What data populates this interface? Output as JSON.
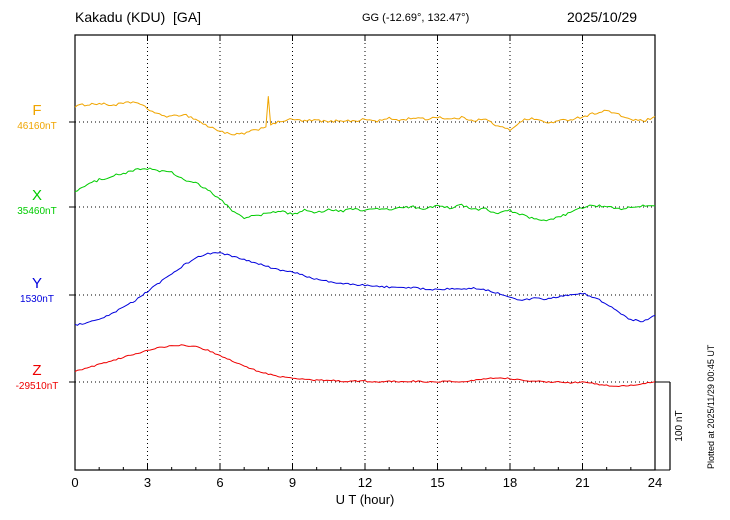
{
  "header": {
    "station": "Kakadu (KDU)  [GA]",
    "coords": "GG (-12.69°, 132.47°)",
    "date": "2025/10/29"
  },
  "plotted_at": "Plotted at 2025/11/29 00:45 UT",
  "scale_bar": {
    "label": "100 nT",
    "nT": 100
  },
  "chart_data": {
    "type": "line",
    "title": "Kakadu (KDU) [GA]",
    "xlabel": "U T (hour)",
    "x_range": [
      0,
      24
    ],
    "x_ticks": [
      0,
      3,
      6,
      9,
      12,
      15,
      18,
      21,
      24
    ],
    "grid": "dotted",
    "y_unit": "nT",
    "scale_bar_nT": 100,
    "points_format": "[UT_hour, offset_nT_from_baseline]",
    "series": [
      {
        "name": "F",
        "baseline_label": "46160nT",
        "baseline_nT": 46160,
        "color": "#f0a500",
        "noise": 1.4,
        "points": [
          [
            0,
            18
          ],
          [
            0.5,
            20
          ],
          [
            1,
            21
          ],
          [
            1.5,
            19
          ],
          [
            2,
            21
          ],
          [
            2.5,
            23
          ],
          [
            3,
            15
          ],
          [
            3.5,
            8
          ],
          [
            4,
            6
          ],
          [
            4.5,
            9
          ],
          [
            5,
            3
          ],
          [
            5.5,
            -5
          ],
          [
            6,
            -10
          ],
          [
            6.5,
            -15
          ],
          [
            7,
            -13
          ],
          [
            7.5,
            -9
          ],
          [
            7.9,
            -5
          ],
          [
            8,
            30
          ],
          [
            8.1,
            -4
          ],
          [
            8.5,
            1
          ],
          [
            9,
            3
          ],
          [
            9.5,
            1
          ],
          [
            10,
            2
          ],
          [
            10.5,
            0
          ],
          [
            11,
            2
          ],
          [
            11.5,
            1
          ],
          [
            12,
            3
          ],
          [
            12.5,
            1
          ],
          [
            13,
            4
          ],
          [
            13.5,
            2
          ],
          [
            14,
            5
          ],
          [
            14.5,
            3
          ],
          [
            15,
            6
          ],
          [
            15.5,
            3
          ],
          [
            16,
            5
          ],
          [
            16.5,
            2
          ],
          [
            17,
            3
          ],
          [
            17.5,
            -5
          ],
          [
            18,
            -9
          ],
          [
            18.5,
            2
          ],
          [
            19,
            4
          ],
          [
            19.5,
            -1
          ],
          [
            20,
            1
          ],
          [
            20.5,
            3
          ],
          [
            21,
            6
          ],
          [
            21.5,
            10
          ],
          [
            22,
            13
          ],
          [
            22.5,
            8
          ],
          [
            23,
            3
          ],
          [
            23.5,
            1
          ],
          [
            24,
            5
          ]
        ]
      },
      {
        "name": "X",
        "baseline_label": "35460nT",
        "baseline_nT": 35460,
        "color": "#00cc00",
        "noise": 1.4,
        "points": [
          [
            0,
            18
          ],
          [
            0.5,
            25
          ],
          [
            1,
            31
          ],
          [
            1.5,
            35
          ],
          [
            2,
            38
          ],
          [
            2.5,
            42
          ],
          [
            3,
            44
          ],
          [
            3.5,
            41
          ],
          [
            4,
            39
          ],
          [
            4.5,
            31
          ],
          [
            5,
            27
          ],
          [
            5.5,
            19
          ],
          [
            6,
            9
          ],
          [
            6.5,
            -4
          ],
          [
            7,
            -12
          ],
          [
            7.5,
            -10
          ],
          [
            8,
            -7
          ],
          [
            8.5,
            -5
          ],
          [
            9,
            -8
          ],
          [
            9.5,
            -4
          ],
          [
            10,
            -6
          ],
          [
            10.5,
            -3
          ],
          [
            11,
            -5
          ],
          [
            11.5,
            -2
          ],
          [
            12,
            -4
          ],
          [
            12.5,
            -2
          ],
          [
            13,
            -3
          ],
          [
            13.5,
            -1
          ],
          [
            14,
            0
          ],
          [
            14.5,
            -2
          ],
          [
            15,
            1
          ],
          [
            15.5,
            -1
          ],
          [
            16,
            2
          ],
          [
            16.5,
            -3
          ],
          [
            17,
            -2
          ],
          [
            17.5,
            -8
          ],
          [
            18,
            -4
          ],
          [
            18.5,
            -9
          ],
          [
            19,
            -14
          ],
          [
            19.5,
            -16
          ],
          [
            20,
            -12
          ],
          [
            20.5,
            -6
          ],
          [
            21,
            -1
          ],
          [
            21.5,
            2
          ],
          [
            22,
            0
          ],
          [
            22.5,
            -2
          ],
          [
            23,
            -1
          ],
          [
            23.5,
            1
          ],
          [
            24,
            2
          ]
        ]
      },
      {
        "name": "Y",
        "baseline_label": "1530nT",
        "baseline_nT": 1530,
        "color": "#0000dd",
        "noise": 1.0,
        "points": [
          [
            0,
            -34
          ],
          [
            0.5,
            -32
          ],
          [
            1,
            -28
          ],
          [
            1.5,
            -22
          ],
          [
            2,
            -14
          ],
          [
            2.5,
            -6
          ],
          [
            3,
            4
          ],
          [
            3.5,
            14
          ],
          [
            4,
            24
          ],
          [
            4.5,
            34
          ],
          [
            5,
            42
          ],
          [
            5.5,
            47
          ],
          [
            6,
            48
          ],
          [
            6.5,
            44
          ],
          [
            7,
            40
          ],
          [
            7.5,
            36
          ],
          [
            8,
            32
          ],
          [
            8.5,
            28
          ],
          [
            9,
            26
          ],
          [
            9.5,
            22
          ],
          [
            10,
            18
          ],
          [
            10.5,
            15
          ],
          [
            11,
            13
          ],
          [
            11.5,
            12
          ],
          [
            12,
            11
          ],
          [
            12.5,
            10
          ],
          [
            13,
            9
          ],
          [
            13.5,
            8
          ],
          [
            14,
            8
          ],
          [
            14.5,
            7
          ],
          [
            15,
            6
          ],
          [
            15.5,
            7
          ],
          [
            16,
            6
          ],
          [
            16.5,
            8
          ],
          [
            17,
            6
          ],
          [
            17.5,
            2
          ],
          [
            18,
            -2
          ],
          [
            18.5,
            -6
          ],
          [
            19,
            -4
          ],
          [
            19.5,
            -5
          ],
          [
            20,
            -2
          ],
          [
            20.5,
            0
          ],
          [
            21,
            2
          ],
          [
            21.5,
            -3
          ],
          [
            22,
            -10
          ],
          [
            22.5,
            -20
          ],
          [
            23,
            -28
          ],
          [
            23.5,
            -30
          ],
          [
            24,
            -23
          ]
        ]
      },
      {
        "name": "Z",
        "baseline_label": "-29510nT",
        "baseline_nT": -29510,
        "color": "#ee0000",
        "noise": 0.7,
        "points": [
          [
            0,
            12
          ],
          [
            0.5,
            16
          ],
          [
            1,
            20
          ],
          [
            1.5,
            24
          ],
          [
            2,
            28
          ],
          [
            2.5,
            32
          ],
          [
            3,
            36
          ],
          [
            3.5,
            39
          ],
          [
            4,
            41
          ],
          [
            4.5,
            42
          ],
          [
            5,
            40
          ],
          [
            5.5,
            36
          ],
          [
            6,
            30
          ],
          [
            6.5,
            24
          ],
          [
            7,
            18
          ],
          [
            7.5,
            13
          ],
          [
            8,
            9
          ],
          [
            8.5,
            6
          ],
          [
            9,
            4
          ],
          [
            9.5,
            3
          ],
          [
            10,
            2
          ],
          [
            10.5,
            2
          ],
          [
            11,
            1
          ],
          [
            11.5,
            1
          ],
          [
            12,
            1
          ],
          [
            12.5,
            0
          ],
          [
            13,
            1
          ],
          [
            13.5,
            0
          ],
          [
            14,
            1
          ],
          [
            14.5,
            0
          ],
          [
            15,
            0
          ],
          [
            15.5,
            1
          ],
          [
            16,
            0
          ],
          [
            16.5,
            2
          ],
          [
            17,
            4
          ],
          [
            17.5,
            5
          ],
          [
            18,
            4
          ],
          [
            18.5,
            2
          ],
          [
            19,
            1
          ],
          [
            19.5,
            0
          ],
          [
            20,
            0
          ],
          [
            20.5,
            -1
          ],
          [
            21,
            0
          ],
          [
            21.5,
            -2
          ],
          [
            22,
            -4
          ],
          [
            22.5,
            -5
          ],
          [
            23,
            -4
          ],
          [
            23.5,
            -2
          ],
          [
            24,
            0
          ]
        ]
      }
    ]
  }
}
